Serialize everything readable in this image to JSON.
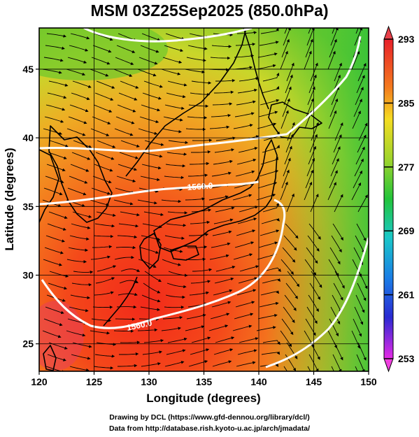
{
  "title": "MSM 03Z25Sep2025 (850.0hPa)",
  "map": {
    "xlabel": "Longitude (degrees)",
    "ylabel": "Latitude  (degrees)",
    "xlim": [
      120,
      150
    ],
    "ylim": [
      23,
      48
    ],
    "xticks": [
      "120",
      "125",
      "130",
      "135",
      "140",
      "145",
      "150"
    ],
    "yticks": [
      "25",
      "30",
      "35",
      "40",
      "45"
    ],
    "contour_labels": [
      "1560.0",
      "1560.0"
    ]
  },
  "colorbar": {
    "min": 253,
    "max": 293,
    "ticks": [
      "293",
      "285",
      "277",
      "269",
      "261",
      "253"
    ]
  },
  "credits": {
    "line1": "Drawing by DCL (https://www.gfd-dennou.org/library/dcl/)",
    "line2": "Data from http://database.rish.kyoto-u.ac.jp/arch/jmadata/"
  }
}
